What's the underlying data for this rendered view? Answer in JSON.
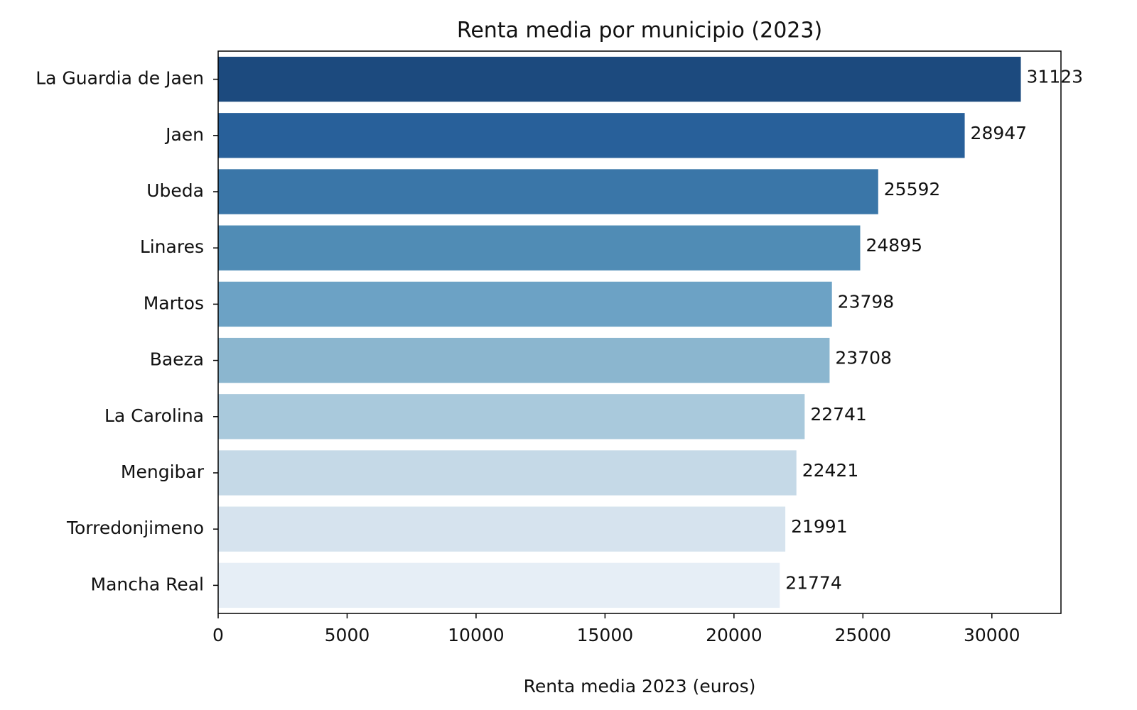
{
  "chart_data": {
    "type": "barh",
    "title": "Renta media por municipio (2023)",
    "x_label": "Renta media 2023 (euros)",
    "categories": [
      "La Guardia de Jaen",
      "Jaen",
      "Ubeda",
      "Linares",
      "Martos",
      "Baeza",
      "La Carolina",
      "Mengibar",
      "Torredonjimeno",
      "Mancha Real"
    ],
    "values": [
      31123,
      28947,
      25592,
      24895,
      23798,
      23708,
      22741,
      22421,
      21991,
      21774
    ],
    "colors": [
      "#1c4a7e",
      "#28609a",
      "#3a76a8",
      "#508cb5",
      "#6ca2c5",
      "#8bb6cf",
      "#a9c9dc",
      "#c5d9e7",
      "#d6e3ee",
      "#e6eef6"
    ],
    "xlim": [
      0,
      32679
    ],
    "xticks": [
      0,
      5000,
      10000,
      15000,
      20000,
      25000,
      30000
    ],
    "grid": false
  }
}
